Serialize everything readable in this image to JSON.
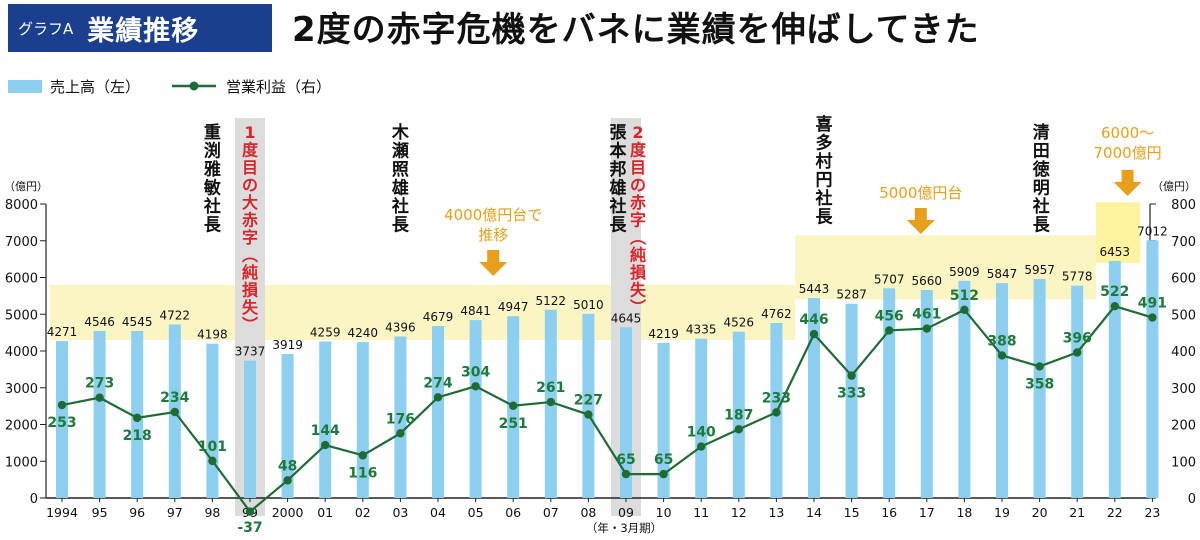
{
  "header": {
    "graph_label": "グラフA",
    "graph_name": "業績推移",
    "headline": "2度の赤字危機をバネに業績を伸ばしてきた"
  },
  "legend": {
    "bar": "売上高（左）",
    "line": "営業利益（右）"
  },
  "colors": {
    "bar": "#8ccfee",
    "line": "#1e6b33",
    "value_label": "#1e7a3a",
    "band": "#fbf5c4",
    "band_strong": "#fff3a0",
    "orange": "#e8a01c",
    "red": "#d8252a",
    "gray_band": "#dcdcdc",
    "title_bg": "#1b3f8f"
  },
  "chart_data": {
    "type": "bar+line",
    "categories": [
      "1994",
      "95",
      "96",
      "97",
      "98",
      "99",
      "2000",
      "01",
      "02",
      "03",
      "04",
      "05",
      "06",
      "07",
      "08",
      "09",
      "10",
      "11",
      "12",
      "13",
      "14",
      "15",
      "16",
      "17",
      "18",
      "19",
      "20",
      "21",
      "22",
      "23"
    ],
    "series": [
      {
        "name": "売上高（左）",
        "type": "bar",
        "axis": "left",
        "values": [
          4271,
          4546,
          4545,
          4722,
          4198,
          3737,
          3919,
          4259,
          4240,
          4396,
          4679,
          4841,
          4947,
          5122,
          5010,
          4645,
          4219,
          4335,
          4526,
          4762,
          5443,
          5287,
          5707,
          5660,
          5909,
          5847,
          5957,
          5778,
          6453,
          7012
        ]
      },
      {
        "name": "営業利益（右）",
        "type": "line",
        "axis": "right",
        "values": [
          253,
          273,
          218,
          234,
          101,
          -37,
          48,
          144,
          116,
          176,
          274,
          304,
          251,
          261,
          227,
          65,
          65,
          140,
          187,
          233,
          446,
          333,
          456,
          461,
          512,
          388,
          358,
          396,
          522,
          491
        ]
      }
    ],
    "y_left": {
      "unit": "（億円）",
      "lim": [
        0,
        8000
      ],
      "ticks": [
        0,
        1000,
        2000,
        3000,
        4000,
        5000,
        6000,
        7000,
        8000
      ]
    },
    "y_right": {
      "unit": "（億円）",
      "lim": [
        0,
        800
      ],
      "ticks": [
        0,
        100,
        200,
        300,
        400,
        500,
        600,
        700,
        800
      ]
    },
    "x_unit": "（年・3月期）",
    "annotations": {
      "presidents": [
        {
          "name": "重渕雅敏社長",
          "category": "98"
        },
        {
          "name": "木瀬照雄社長",
          "category": "03"
        },
        {
          "name": "張本邦雄社長",
          "category": "09"
        },
        {
          "name": "喜多村円社長",
          "category": "14"
        },
        {
          "name": "清田徳明社長",
          "category": "21"
        }
      ],
      "losses": [
        {
          "label": "1度目の大赤字",
          "sub": "（純損失）",
          "category": "99"
        },
        {
          "label": "2度目の赤字",
          "sub": "（純損失）",
          "category": "09"
        }
      ],
      "bands": [
        {
          "from": "1994",
          "to": "13",
          "y_range": [
            4300,
            5800
          ]
        },
        {
          "from": "14",
          "to": "21",
          "y_range": [
            5400,
            7150
          ]
        },
        {
          "from": "22",
          "to": "23",
          "y_range": [
            6400,
            8050
          ]
        }
      ],
      "callouts": [
        {
          "lines": [
            "4000億円台で",
            "推移"
          ],
          "category": "06"
        },
        {
          "lines": [
            "5000億円台"
          ],
          "category": "17"
        },
        {
          "lines": [
            "6000～",
            "7000億円"
          ],
          "category": "22-23"
        }
      ]
    }
  }
}
